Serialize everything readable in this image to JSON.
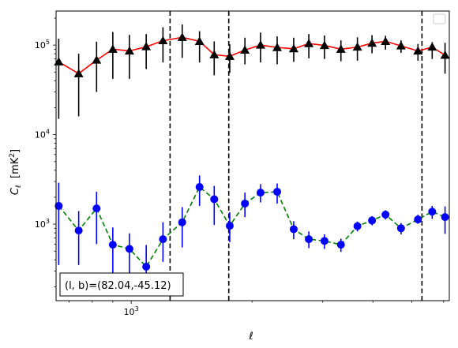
{
  "chart_data": {
    "type": "scatter",
    "xlabel": "ℓ",
    "ylabel": "C_ℓ [mK²]",
    "xscale": "log",
    "yscale": "log",
    "xlim": [
      650,
      6200
    ],
    "ylim": [
      140,
      240000
    ],
    "xticks": [
      {
        "value": 1000,
        "base": "10",
        "exp": "3"
      }
    ],
    "yticks": [
      {
        "value": 1000,
        "base": "10",
        "exp": "3"
      },
      {
        "value": 10000,
        "base": "10",
        "exp": "4"
      },
      {
        "value": 100000,
        "base": "10",
        "exp": "5"
      }
    ],
    "vlines": [
      1250,
      1750,
      5300
    ],
    "annotation": "(l, b)=(82.04,-45.12)",
    "legend": {
      "placement": "top-right",
      "entries": []
    },
    "series": [
      {
        "marker": "triangle",
        "marker_color": "#000000",
        "errorbar_color": "#000000",
        "line_color": "#ff0000",
        "line_style": "solid",
        "x": [
          660,
          740,
          820,
          900,
          990,
          1090,
          1200,
          1340,
          1480,
          1610,
          1760,
          1920,
          2100,
          2310,
          2540,
          2770,
          3030,
          3330,
          3660,
          3980,
          4300,
          4700,
          5180,
          5620,
          6050
        ],
        "y": [
          65000,
          48000,
          68000,
          90000,
          86000,
          96000,
          112000,
          122000,
          110000,
          78000,
          75000,
          88000,
          100000,
          94000,
          91000,
          104000,
          99000,
          90000,
          95000,
          105000,
          110000,
          98000,
          86000,
          95000,
          77000
        ],
        "err_low": [
          50000,
          32000,
          38000,
          48000,
          44000,
          42000,
          48000,
          50000,
          46000,
          32000,
          26000,
          27000,
          36000,
          33000,
          26000,
          33000,
          29000,
          24000,
          28000,
          24000,
          21000,
          16000,
          19000,
          25000,
          29000
        ],
        "err_high": [
          53000,
          32000,
          41000,
          50000,
          44000,
          37000,
          46000,
          48000,
          33000,
          32000,
          27000,
          33000,
          38000,
          31000,
          30000,
          29000,
          29000,
          23000,
          27000,
          24000,
          17000,
          15000,
          17000,
          13000,
          29000
        ]
      },
      {
        "marker": "circle",
        "marker_color": "#0000ff",
        "errorbar_color": "#0000ff",
        "line_color": "#008000",
        "line_style": "dashed",
        "x": [
          660,
          740,
          820,
          900,
          990,
          1090,
          1200,
          1340,
          1480,
          1610,
          1760,
          1920,
          2100,
          2310,
          2540,
          2770,
          3030,
          3330,
          3660,
          3980,
          4300,
          4700,
          5180,
          5620,
          6050
        ],
        "y": [
          1600,
          850,
          1500,
          590,
          530,
          335,
          680,
          1050,
          2600,
          1900,
          960,
          1700,
          2250,
          2300,
          880,
          680,
          650,
          590,
          950,
          1100,
          1280,
          900,
          1130,
          1380,
          1200
        ],
        "err_low": [
          1250,
          500,
          900,
          330,
          260,
          125,
          300,
          500,
          1000,
          920,
          330,
          500,
          500,
          600,
          200,
          140,
          120,
          100,
          120,
          130,
          150,
          130,
          120,
          230,
          420
        ],
        "err_high": [
          1300,
          550,
          800,
          330,
          260,
          250,
          370,
          500,
          900,
          780,
          400,
          550,
          550,
          550,
          200,
          150,
          120,
          100,
          120,
          130,
          150,
          130,
          150,
          220,
          380
        ]
      }
    ]
  }
}
